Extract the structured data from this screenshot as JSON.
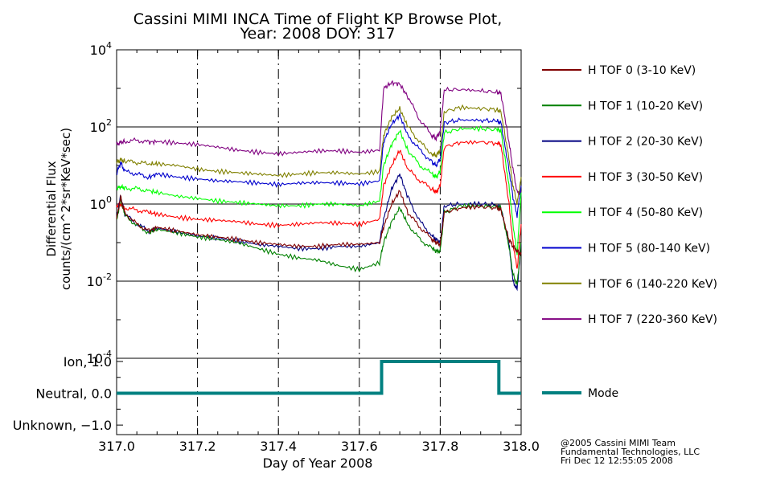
{
  "chart_data": [
    {
      "type": "line",
      "title": "Cassini MIMI INCA Time of Flight KP Browse Plot,",
      "subtitle": "Year: 2008 DOY: 317",
      "xlabel": "Day of Year 2008",
      "ylabel_line1": "Differential Flux",
      "ylabel_line2": "counts/(cm^2*sr*KeV*sec)",
      "yscale": "log",
      "ylim": [
        0.0001,
        10000
      ],
      "xlim": [
        317.0,
        318.0
      ],
      "yticks": [
        {
          "base": "10",
          "exp": "4"
        },
        {
          "base": "10",
          "exp": "2"
        },
        {
          "base": "10",
          "exp": "0"
        },
        {
          "base": "10",
          "exp": "-2"
        },
        {
          "base": "10",
          "exp": "-4"
        }
      ],
      "grid_x": [
        317.2,
        317.4,
        317.6,
        317.8
      ],
      "grid_y": [
        100,
        1,
        0.01
      ],
      "x": [
        317.0,
        317.01,
        317.02,
        317.05,
        317.08,
        317.1,
        317.15,
        317.2,
        317.25,
        317.3,
        317.35,
        317.4,
        317.45,
        317.5,
        317.55,
        317.6,
        317.65,
        317.66,
        317.68,
        317.7,
        317.72,
        317.75,
        317.78,
        317.79,
        317.8,
        317.81,
        317.85,
        317.9,
        317.94,
        317.95,
        317.97,
        317.98,
        317.99,
        318.0
      ],
      "series": [
        {
          "name": "H TOF 0 (3-10 KeV)",
          "color": "#800000",
          "values": [
            0.4,
            1.5,
            0.6,
            0.3,
            0.2,
            0.25,
            0.2,
            0.16,
            0.14,
            0.12,
            0.1,
            0.09,
            0.08,
            0.08,
            0.09,
            0.09,
            0.1,
            0.25,
            1.0,
            2.2,
            0.6,
            0.25,
            0.12,
            0.1,
            0.09,
            0.6,
            0.8,
            0.85,
            0.8,
            0.7,
            0.12,
            0.08,
            0.06,
            0.05
          ]
        },
        {
          "name": "H TOF 1 (10-20 KeV)",
          "color": "#008000",
          "values": [
            0.35,
            1.4,
            0.5,
            0.28,
            0.18,
            0.22,
            0.18,
            0.14,
            0.12,
            0.1,
            0.07,
            0.05,
            0.04,
            0.035,
            0.025,
            0.02,
            0.03,
            0.1,
            0.35,
            0.8,
            0.3,
            0.12,
            0.07,
            0.06,
            0.06,
            0.6,
            0.9,
            0.9,
            0.85,
            0.8,
            0.08,
            0.015,
            0.008,
            0.1
          ]
        },
        {
          "name": "H TOF 2 (20-30 KeV)",
          "color": "#000080",
          "values": [
            0.45,
            1.6,
            0.55,
            0.3,
            0.2,
            0.24,
            0.19,
            0.15,
            0.13,
            0.11,
            0.09,
            0.08,
            0.07,
            0.07,
            0.08,
            0.08,
            0.1,
            0.4,
            2.5,
            6.0,
            1.5,
            0.35,
            0.15,
            0.12,
            0.1,
            0.9,
            1.0,
            1.0,
            0.95,
            0.8,
            0.09,
            0.01,
            0.006,
            0.1
          ]
        },
        {
          "name": "H TOF 3 (30-50 KeV)",
          "color": "#ff0000",
          "values": [
            0.9,
            1.0,
            0.8,
            0.7,
            0.6,
            0.55,
            0.45,
            0.4,
            0.38,
            0.35,
            0.3,
            0.28,
            0.3,
            0.33,
            0.32,
            0.3,
            0.4,
            3.0,
            10,
            25,
            8,
            4,
            2.5,
            2.0,
            3.0,
            30,
            40,
            40,
            38,
            35,
            1.0,
            0.1,
            0.02,
            0.3
          ]
        },
        {
          "name": "H TOF 4 (50-80 KeV)",
          "color": "#00ff00",
          "values": [
            2.5,
            2.8,
            2.6,
            2.5,
            2.2,
            2.0,
            1.6,
            1.4,
            1.2,
            1.1,
            1.0,
            0.9,
            0.9,
            1.0,
            1.0,
            0.9,
            1.2,
            10,
            35,
            80,
            25,
            10,
            6,
            5,
            7,
            70,
            90,
            90,
            85,
            80,
            3,
            0.3,
            0.05,
            2.0
          ]
        },
        {
          "name": "H TOF 5 (80-140 KeV)",
          "color": "#0000cd",
          "values": [
            6,
            12,
            7,
            6,
            5,
            6,
            5,
            4.5,
            4,
            3.8,
            3.5,
            3.2,
            3.5,
            3.6,
            3.5,
            3.3,
            4,
            40,
            120,
            200,
            60,
            25,
            12,
            10,
            15,
            130,
            150,
            150,
            140,
            130,
            8,
            1.5,
            0.5,
            3.0
          ]
        },
        {
          "name": "H TOF 6 (140-220 KeV)",
          "color": "#808000",
          "values": [
            12,
            14,
            13,
            12,
            11,
            11,
            10,
            8,
            7,
            6.5,
            6,
            5.5,
            6,
            6.5,
            6.5,
            6,
            7,
            60,
            180,
            300,
            100,
            40,
            20,
            18,
            25,
            250,
            320,
            300,
            280,
            250,
            15,
            3,
            1.0,
            5.0
          ]
        },
        {
          "name": "H TOF 7 (220-360 KeV)",
          "color": "#800080",
          "values": [
            35,
            40,
            42,
            45,
            40,
            42,
            38,
            35,
            30,
            25,
            22,
            20,
            22,
            24,
            24,
            22,
            25,
            1000,
            1400,
            1300,
            600,
            150,
            60,
            50,
            80,
            900,
            950,
            850,
            800,
            750,
            40,
            8,
            2.0,
            2.0
          ]
        }
      ]
    },
    {
      "type": "line",
      "xlabel": "Day of Year 2008",
      "xlim": [
        317.0,
        318.0
      ],
      "ylim": [
        -1.3,
        1.1
      ],
      "xticks": [
        "317.0",
        "317.2",
        "317.4",
        "317.6",
        "317.8",
        "318.0"
      ],
      "ytick_labels": [
        {
          "label": "Ion, 1.0",
          "value": 1.0
        },
        {
          "label": "Neutral, 0.0",
          "value": 0.0
        },
        {
          "label": "Unknown, −1.0",
          "value": -1.0
        }
      ],
      "series": [
        {
          "name": "Mode",
          "color": "#008080",
          "x": [
            317.0,
            317.655,
            317.655,
            317.945,
            317.945,
            318.0
          ],
          "values": [
            0,
            0,
            1,
            1,
            0,
            0
          ]
        }
      ]
    }
  ],
  "credits": {
    "line1": "@2005 Cassini MIMI Team",
    "line2": "Fundamental Technologies, LLC",
    "line3": "Fri Dec 12 12:55:05 2008"
  }
}
